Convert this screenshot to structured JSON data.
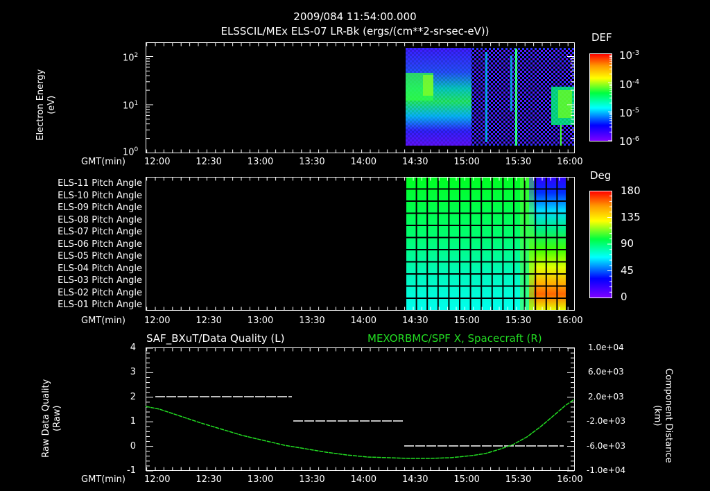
{
  "header": {
    "timestamp": "2009/084 11:54:00.000",
    "subtitle": "ELSSCIL/MEx ELS-07 LR-Bk  (ergs/(cm**2-sr-sec-eV))"
  },
  "colors": {
    "background": "#000000",
    "axis": "#ffffff",
    "spacecraft_trace": "#22dd22",
    "quality_trace": "#ffffff"
  },
  "time_axis": {
    "label": "GMT(min)",
    "ticks": [
      "12:00",
      "12:30",
      "13:00",
      "13:30",
      "14:00",
      "14:30",
      "15:00",
      "15:30",
      "16:00"
    ]
  },
  "panel1": {
    "ylabel": "Electron Energy",
    "yunits": "(eV)",
    "yticks": [
      {
        "base": "10",
        "exp": "2"
      },
      {
        "base": "10",
        "exp": "1"
      },
      {
        "base": "10",
        "exp": "0"
      }
    ],
    "colorbar": {
      "title": "DEF",
      "ticks": [
        {
          "base": "10",
          "exp": "-3"
        },
        {
          "base": "10",
          "exp": "-4"
        },
        {
          "base": "10",
          "exp": "-5"
        },
        {
          "base": "10",
          "exp": "-6"
        }
      ]
    }
  },
  "panel2": {
    "rows": [
      "ELS-11 Pitch Angle",
      "ELS-10 Pitch Angle",
      "ELS-09 Pitch Angle",
      "ELS-08 Pitch Angle",
      "ELS-07 Pitch Angle",
      "ELS-06 Pitch Angle",
      "ELS-05 Pitch Angle",
      "ELS-04 Pitch Angle",
      "ELS-03 Pitch Angle",
      "ELS-02 Pitch Angle",
      "ELS-01 Pitch Angle"
    ],
    "colorbar": {
      "title": "Deg",
      "ticks": [
        "180",
        "135",
        "90",
        "45",
        "0"
      ]
    }
  },
  "panel3": {
    "left_title": "SAF_BXuT/Data Quality (L)",
    "right_title": "MEXORBMC/SPF X, Spacecraft (R)",
    "ylabel_left": "Raw Data Quality",
    "yunits_left": "(Raw)",
    "yticks_left": [
      "4",
      "3",
      "2",
      "1",
      "0",
      "-1"
    ],
    "ylabel_right": "Component Distance",
    "yunits_right": "(km)",
    "yticks_right": [
      "1.0e+04",
      "6.0e+03",
      "2.0e+03",
      "-2.0e+03",
      "-6.0e+03",
      "-1.0e+04"
    ]
  },
  "chart_data": [
    {
      "type": "heatmap",
      "title": "ELSSCIL/MEx ELS-07 LR-Bk (ergs/(cm**2-sr-sec-eV))",
      "xlabel": "GMT(min)",
      "ylabel": "Electron Energy (eV)",
      "x_range": [
        "11:54",
        "16:04"
      ],
      "y_scale": "log",
      "y_range": [
        1,
        200
      ],
      "colorbar": {
        "label": "DEF",
        "scale": "log",
        "range": [
          1e-06,
          0.001
        ]
      },
      "data_start": "14:28",
      "features": [
        {
          "time": "14:28-14:45",
          "energy_eV": "5-20",
          "level": "~1e-4"
        },
        {
          "time": "15:50-16:00",
          "energy_eV": "3-15",
          "level": "~1e-4"
        },
        {
          "time": "14:45-15:50",
          "energy_eV": "1-150",
          "level": "1e-6 to 1e-5 sparse"
        }
      ]
    },
    {
      "type": "heatmap",
      "title": "Pitch Angle",
      "xlabel": "GMT(min)",
      "ylabel": "",
      "rows": [
        "ELS-11",
        "ELS-10",
        "ELS-09",
        "ELS-08",
        "ELS-07",
        "ELS-06",
        "ELS-05",
        "ELS-04",
        "ELS-03",
        "ELS-02",
        "ELS-01"
      ],
      "colorbar": {
        "label": "Deg",
        "range": [
          0,
          180
        ],
        "ticks": [
          0,
          45,
          90,
          135,
          180
        ]
      },
      "data_start": "14:28",
      "approx_values_deg": {
        "14:28-15:45": [
          100,
          100,
          100,
          100,
          98,
          95,
          92,
          88,
          84,
          80,
          78
        ],
        "15:45-16:00": [
          30,
          35,
          50,
          70,
          90,
          105,
          125,
          145,
          155,
          145,
          120
        ]
      }
    },
    {
      "type": "line",
      "title": "SAF_BXuT/Data Quality (L) ; MEXORBMC/SPF X, Spacecraft (R)",
      "xlabel": "GMT(min)",
      "x": [
        "12:00",
        "12:30",
        "13:00",
        "13:30",
        "14:00",
        "14:30",
        "15:00",
        "15:30",
        "16:00"
      ],
      "series": [
        {
          "name": "Data Quality (L)",
          "axis": "left",
          "color": "#ffffff",
          "segments": [
            {
              "from": "12:00",
              "to": "13:20",
              "value": 2
            },
            {
              "from": "13:20",
              "to": "14:25",
              "value": 1
            },
            {
              "from": "14:25",
              "to": "15:57",
              "value": 0
            }
          ]
        },
        {
          "name": "Spacecraft X (R) km",
          "axis": "right",
          "color": "#22dd22",
          "values": [
            400,
            -1400,
            -3200,
            -4800,
            -6200,
            -7200,
            -7400,
            -6000,
            1200
          ]
        }
      ],
      "ylim_left": [
        -1,
        4
      ],
      "ylim_right": [
        -10000,
        10000
      ],
      "ylabel_left": "Raw Data Quality (Raw)",
      "ylabel_right": "Component Distance (km)"
    }
  ]
}
